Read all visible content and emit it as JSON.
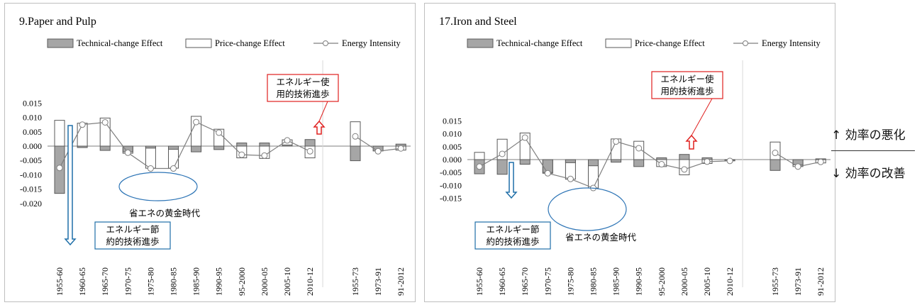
{
  "legend": {
    "technical": "Technical-change Effect",
    "price": "Price-change Effect",
    "intensity": "Energy Intensity"
  },
  "side_notes": {
    "worse": "↑ 効率の悪化",
    "better": "↓ 効率の改善"
  },
  "colors": {
    "technical_fill": "#a6a6a6",
    "price_fill": "#ffffff",
    "bar_stroke": "#595959",
    "line": "#7f7f7f",
    "red_box": "#e0201f",
    "blue_box": "#1f6fa8",
    "ellipse": "#2e75b6"
  },
  "chart_data": [
    {
      "type": "bar",
      "title": "9.Paper and Pulp",
      "categories": [
        "1955-60",
        "1960-65",
        "1965-70",
        "1970-75",
        "1975-80",
        "1980-85",
        "1985-90",
        "1990-95",
        "95-2000",
        "2000-05",
        "2005-10",
        "2010-12",
        "1955-73",
        "1973-91",
        "91-2012"
      ],
      "group_break_after": 11,
      "ylim": [
        -0.02,
        0.015
      ],
      "yticks": [
        "0.015",
        "0.010",
        "0.005",
        "0.000",
        "-0.005",
        "-0.010",
        "-0.015",
        "-0.020"
      ],
      "series": [
        {
          "name": "Technical-change Effect",
          "kind": "bar",
          "values": [
            -0.0165,
            -0.0005,
            -0.0015,
            -0.002,
            -0.0007,
            -0.0011,
            -0.002,
            -0.0012,
            0.0011,
            0.0011,
            0.0004,
            0.0023,
            -0.0051,
            -0.0017,
            0.0007
          ]
        },
        {
          "name": "Price-change Effect",
          "kind": "bar",
          "values": [
            0.009,
            0.008,
            0.0098,
            -0.0025,
            -0.0077,
            -0.0077,
            0.0104,
            0.0059,
            -0.0041,
            -0.0043,
            0.0022,
            -0.0041,
            0.0085,
            -0.0002,
            -0.0014
          ]
        },
        {
          "name": "Energy Intensity",
          "kind": "line",
          "values": [
            -0.0076,
            0.0075,
            0.0083,
            -0.0023,
            -0.0078,
            -0.0078,
            0.0084,
            0.0047,
            -0.003,
            -0.0033,
            0.002,
            -0.0018,
            0.0034,
            -0.0018,
            -0.0008
          ]
        }
      ],
      "annotations": {
        "use_box": [
          "エネルギー使",
          "用的技術進歩"
        ],
        "save_box": [
          "エネルギー節",
          "約的技術進歩"
        ],
        "golden_age": "省エネの黄金時代"
      }
    },
    {
      "type": "bar",
      "title": "17.Iron and Steel",
      "categories": [
        "1955-60",
        "1960-65",
        "1965-70",
        "1970-75",
        "1975-80",
        "1980-85",
        "1985-90",
        "1990-95",
        "95-2000",
        "2000-05",
        "2005-10",
        "2010-12",
        "1955-73",
        "1973-91",
        "91-2012"
      ],
      "group_break_after": 11,
      "ylim": [
        -0.015,
        0.015
      ],
      "yticks": [
        "0.015",
        "0.010",
        "0.005",
        "0.000",
        "-0.005",
        "-0.010",
        "-0.015"
      ],
      "series": [
        {
          "name": "Technical-change Effect",
          "kind": "bar",
          "values": [
            -0.0055,
            -0.0057,
            -0.0018,
            -0.005,
            -0.0012,
            -0.0024,
            -0.001,
            -0.0027,
            0.0007,
            0.002,
            0.0007,
            -0.0002,
            -0.0042,
            -0.002,
            0.0003
          ]
        },
        {
          "name": "Price-change Effect",
          "kind": "bar",
          "values": [
            0.0028,
            0.0079,
            0.0103,
            -0.0053,
            -0.0076,
            -0.011,
            0.008,
            0.0071,
            -0.0027,
            -0.0059,
            -0.0015,
            -0.0005,
            0.0068,
            -0.0027,
            -0.0013
          ]
        },
        {
          "name": "Energy Intensity",
          "kind": "line",
          "values": [
            -0.0027,
            0.0022,
            0.0085,
            -0.0053,
            -0.0075,
            -0.011,
            0.007,
            0.0044,
            -0.0018,
            -0.0038,
            -0.0008,
            -0.0005,
            0.0026,
            -0.0027,
            -0.0009
          ]
        }
      ],
      "annotations": {
        "use_box": [
          "エネルギー使",
          "用的技術進歩"
        ],
        "save_box": [
          "エネルギー節",
          "約的技術進歩"
        ],
        "golden_age": "省エネの黄金時代"
      }
    }
  ]
}
